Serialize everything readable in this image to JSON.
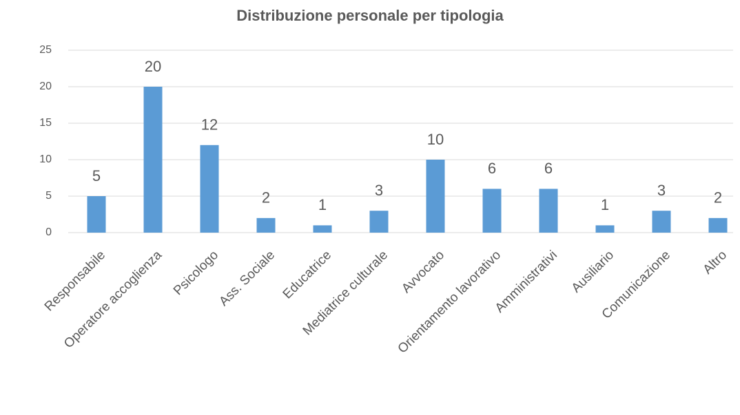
{
  "chart_data": {
    "type": "bar",
    "title": "Distribuzione personale per tipologia",
    "categories": [
      "Responsabile",
      "Operatore accoglienza",
      "Psicologo",
      "Ass. Sociale",
      "Educatrice",
      "Mediatrice culturale",
      "Avvocato",
      "Orientamento lavorativo",
      "Amministrativi",
      "Ausiliario",
      "Comunicazione",
      "Altro"
    ],
    "values": [
      5,
      20,
      12,
      2,
      1,
      3,
      10,
      6,
      6,
      1,
      3,
      2
    ],
    "color": "#5b9bd5",
    "ylim": [
      0,
      25
    ],
    "yticks": [
      0,
      5,
      10,
      15,
      20,
      25
    ],
    "grid": true
  }
}
